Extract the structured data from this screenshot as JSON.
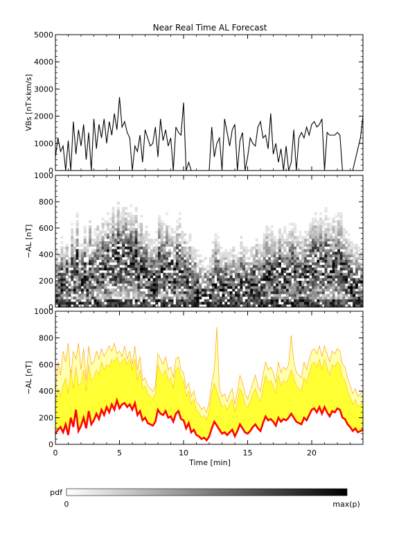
{
  "title": "Near Real Time AL Forecast",
  "xlabel": "Time [min]",
  "colorbar": {
    "label": "pdf",
    "min_label": "0",
    "max_label": "max(p)"
  },
  "chart_data": [
    {
      "type": "line",
      "ylabel": "VBs [nT×km/s]",
      "xlim": [
        0,
        24
      ],
      "ylim": [
        0,
        5000
      ],
      "xticks": [
        0,
        5,
        10,
        15,
        20
      ],
      "yticks": [
        0,
        1000,
        2000,
        3000,
        4000,
        5000
      ],
      "series": [
        {
          "x": [
            0,
            0.2,
            0.4,
            0.6,
            0.8,
            1.0,
            1.2,
            1.4,
            1.6,
            1.8,
            2.0,
            2.2,
            2.4,
            2.6,
            2.8,
            3.0,
            3.2,
            3.4,
            3.6,
            3.8,
            4.0,
            4.2,
            4.4,
            4.6,
            4.8,
            5.0,
            5.2,
            5.4,
            5.6,
            5.8,
            6.0,
            6.2,
            6.4,
            6.6,
            6.8,
            7.0,
            7.2,
            7.4,
            7.6,
            7.8,
            8.0,
            8.2,
            8.4,
            8.6,
            8.8,
            9.0,
            9.2,
            9.4,
            9.6,
            9.8,
            10.0,
            10.2,
            10.4,
            10.6,
            10.8,
            11.0,
            11.2,
            11.4,
            11.6,
            11.8,
            12.0,
            12.2,
            12.4,
            12.6,
            12.8,
            13.0,
            13.2,
            13.4,
            13.6,
            13.8,
            14.0,
            14.2,
            14.4,
            14.6,
            14.8,
            15.0,
            15.2,
            15.4,
            15.6,
            15.8,
            16.0,
            16.2,
            16.4,
            16.6,
            16.8,
            17.0,
            17.2,
            17.4,
            17.6,
            17.8,
            18.0,
            18.2,
            18.4,
            18.6,
            18.8,
            19.0,
            19.2,
            19.4,
            19.6,
            19.8,
            20.0,
            20.2,
            20.4,
            20.6,
            20.8,
            21.0,
            21.2,
            21.4,
            21.6,
            21.8,
            22.0,
            22.2,
            22.4,
            22.6,
            22.8,
            23.0,
            23.2,
            23.4,
            23.6,
            23.8,
            24.0
          ],
          "values": [
            500,
            1200,
            700,
            900,
            0,
            1100,
            0,
            1800,
            600,
            1500,
            900,
            1700,
            400,
            1400,
            0,
            1900,
            800,
            1700,
            1200,
            1900,
            1000,
            1800,
            1300,
            2100,
            1500,
            2700,
            1600,
            1800,
            1400,
            1200,
            0,
            900,
            700,
            1300,
            300,
            1500,
            1200,
            900,
            1000,
            1600,
            500,
            1900,
            1100,
            1500,
            900,
            1200,
            0,
            1600,
            1400,
            1300,
            2500,
            0,
            300,
            0,
            0,
            0,
            0,
            0,
            0,
            0,
            0,
            1600,
            500,
            1000,
            1200,
            0,
            1900,
            1400,
            900,
            1500,
            1700,
            0,
            1100,
            1400,
            0,
            500,
            1200,
            1000,
            900,
            1600,
            1800,
            1200,
            1300,
            800,
            2100,
            600,
            1000,
            300,
            800,
            0,
            900,
            0,
            300,
            1500,
            0,
            1200,
            1400,
            1200,
            1600,
            1300,
            1700,
            1800,
            1600,
            1700,
            1900,
            0,
            1400,
            1300,
            1300,
            1300,
            1400,
            1300,
            0,
            0,
            0,
            0,
            0,
            400,
            800,
            1200,
            2000
          ]
        }
      ]
    },
    {
      "type": "heatmap",
      "ylabel": "−AL [nT]",
      "xlim": [
        0,
        24
      ],
      "ylim": [
        0,
        1000
      ],
      "yticks": [
        0,
        200,
        400,
        600,
        800,
        1000
      ],
      "color_scale": "white to black (pdf)"
    },
    {
      "type": "area",
      "ylabel": "−AL [nT]",
      "xlim": [
        0,
        24
      ],
      "ylim": [
        0,
        1000
      ],
      "xticks": [
        0,
        5,
        10,
        15,
        20
      ],
      "yticks": [
        0,
        200,
        400,
        600,
        800,
        1000
      ],
      "colors": {
        "line": "#ff0000",
        "inner_band": "#ffff33",
        "outer_band": "#ffffb0",
        "band_edge": "#ffa500"
      },
      "series": [
        {
          "x": [
            0,
            0.2,
            0.4,
            0.6,
            0.8,
            1.0,
            1.2,
            1.4,
            1.6,
            1.8,
            2.0,
            2.2,
            2.4,
            2.6,
            2.8,
            3.0,
            3.2,
            3.4,
            3.6,
            3.8,
            4.0,
            4.2,
            4.4,
            4.6,
            4.8,
            5.0,
            5.2,
            5.4,
            5.6,
            5.8,
            6.0,
            6.2,
            6.4,
            6.6,
            6.8,
            7.0,
            7.2,
            7.4,
            7.6,
            7.8,
            8.0,
            8.2,
            8.4,
            8.6,
            8.8,
            9.0,
            9.2,
            9.4,
            9.6,
            9.8,
            10.0,
            10.2,
            10.4,
            10.6,
            10.8,
            11.0,
            11.2,
            11.4,
            11.6,
            11.8,
            12.0,
            12.2,
            12.4,
            12.6,
            12.8,
            13.0,
            13.2,
            13.4,
            13.6,
            13.8,
            14.0,
            14.2,
            14.4,
            14.6,
            14.8,
            15.0,
            15.2,
            15.4,
            15.6,
            15.8,
            16.0,
            16.2,
            16.4,
            16.6,
            16.8,
            17.0,
            17.2,
            17.4,
            17.6,
            17.8,
            18.0,
            18.2,
            18.4,
            18.6,
            18.8,
            19.0,
            19.2,
            19.4,
            19.6,
            19.8,
            20.0,
            20.2,
            20.4,
            20.6,
            20.8,
            21.0,
            21.2,
            21.4,
            21.6,
            21.8,
            22.0,
            22.2,
            22.4,
            22.6,
            22.8,
            23.0,
            23.2,
            23.4,
            23.6,
            23.8,
            24.0
          ],
          "values": [
            80,
            110,
            130,
            90,
            150,
            70,
            200,
            130,
            260,
            100,
            140,
            200,
            120,
            250,
            150,
            180,
            230,
            190,
            260,
            220,
            280,
            240,
            300,
            260,
            330,
            270,
            300,
            310,
            280,
            300,
            260,
            310,
            220,
            250,
            180,
            200,
            160,
            150,
            140,
            170,
            260,
            230,
            220,
            250,
            200,
            210,
            170,
            230,
            250,
            190,
            180,
            120,
            160,
            90,
            110,
            70,
            60,
            40,
            50,
            30,
            60,
            120,
            170,
            140,
            110,
            80,
            90,
            70,
            90,
            110,
            60,
            100,
            150,
            120,
            90,
            80,
            100,
            130,
            150,
            120,
            100,
            160,
            210,
            180,
            190,
            170,
            140,
            200,
            170,
            190,
            180,
            200,
            230,
            200,
            170,
            160,
            150,
            200,
            180,
            220,
            260,
            270,
            240,
            280,
            230,
            280,
            240,
            210,
            250,
            240,
            270,
            260,
            200,
            190,
            150,
            130,
            100,
            120,
            90,
            100,
            110
          ],
          "name": ""
        }
      ],
      "band_inner_upper": [
        300,
        420,
        360,
        440,
        500,
        380,
        560,
        420,
        580,
        440,
        460,
        560,
        400,
        600,
        480,
        500,
        560,
        520,
        620,
        560,
        600,
        580,
        640,
        620,
        660,
        600,
        620,
        650,
        600,
        640,
        560,
        640,
        480,
        560,
        420,
        440,
        380,
        360,
        340,
        380,
        600,
        540,
        520,
        560,
        480,
        500,
        420,
        560,
        580,
        500,
        480,
        360,
        400,
        300,
        340,
        260,
        240,
        200,
        220,
        180,
        260,
        380,
        460,
        400,
        340,
        280,
        300,
        260,
        300,
        340,
        240,
        320,
        420,
        380,
        300,
        280,
        320,
        380,
        420,
        360,
        320,
        420,
        520,
        460,
        480,
        440,
        380,
        520,
        440,
        480,
        460,
        500,
        560,
        500,
        440,
        420,
        400,
        500,
        460,
        540,
        600,
        620,
        580,
        640,
        560,
        640,
        580,
        520,
        600,
        580,
        620,
        600,
        500,
        480,
        400,
        360,
        300,
        340,
        280,
        300,
        320
      ],
      "band_outer_upper": [
        380,
        620,
        520,
        700,
        620,
        760,
        500,
        700,
        640,
        760,
        560,
        720,
        480,
        740,
        600,
        620,
        700,
        640,
        720,
        660,
        700,
        740,
        700,
        760,
        680,
        700,
        660,
        740,
        640,
        700,
        600,
        740,
        560,
        660,
        480,
        500,
        440,
        420,
        400,
        440,
        680,
        640,
        600,
        660,
        560,
        580,
        500,
        640,
        660,
        560,
        540,
        420,
        460,
        360,
        400,
        320,
        300,
        260,
        280,
        240,
        320,
        460,
        560,
        880,
        420,
        360,
        380,
        320,
        380,
        420,
        300,
        400,
        520,
        460,
        380,
        340,
        400,
        460,
        520,
        440,
        400,
        520,
        620,
        560,
        580,
        540,
        460,
        620,
        540,
        580,
        560,
        600,
        820,
        620,
        540,
        520,
        500,
        620,
        560,
        640,
        700,
        720,
        680,
        740,
        660,
        740,
        680,
        620,
        700,
        680,
        720,
        700,
        600,
        580,
        500,
        440,
        380,
        420,
        360,
        380,
        400
      ]
    }
  ]
}
